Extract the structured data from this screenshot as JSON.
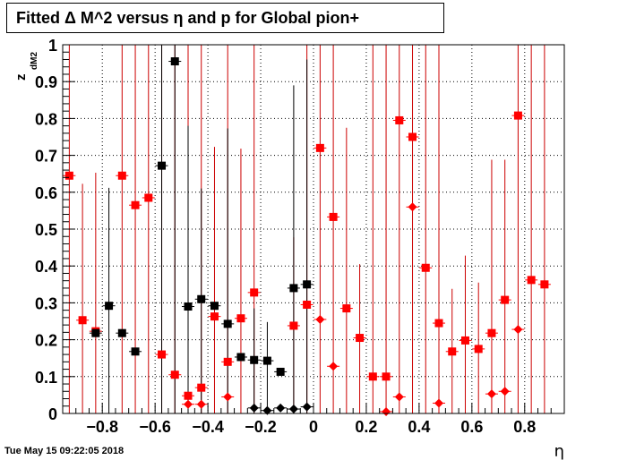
{
  "chart_data": {
    "type": "scatter",
    "title": "Fitted Δ M^2 versus η and p for Global pion+",
    "xlabel": "η",
    "zlabel": "z",
    "zlabel_sub": "dM2",
    "xlim": [
      -0.95,
      0.95
    ],
    "ylim": [
      0,
      1
    ],
    "grid": true,
    "x_ticks": [
      -0.8,
      -0.6,
      -0.4,
      -0.2,
      0,
      0.2,
      0.4,
      0.6,
      0.8
    ],
    "x_tick_labels": [
      "−0.8",
      "−0.6",
      "−0.4",
      "−0.2",
      "0",
      "0.2",
      "0.4",
      "0.6",
      "0.8"
    ],
    "y_ticks": [
      0,
      0.1,
      0.2,
      0.3,
      0.4,
      0.5,
      0.6,
      0.7,
      0.8,
      0.9,
      1
    ],
    "y_tick_labels": [
      "0",
      "0.1",
      "0.2",
      "0.3",
      "0.4",
      "0.5",
      "0.6",
      "0.7",
      "0.8",
      "0.9",
      "1"
    ],
    "colors": {
      "red": "#ff0000",
      "black": "#000000",
      "red_errbar": "#cc0000"
    },
    "series": [
      {
        "color": "red",
        "marker": "square",
        "points": [
          {
            "x": -0.925,
            "y": 0.645,
            "err": 1.0
          },
          {
            "x": -0.875,
            "y": 0.253,
            "err": 0.37
          },
          {
            "x": -0.825,
            "y": 0.223,
            "err": 0.43
          },
          {
            "x": -0.725,
            "y": 0.645,
            "err": 1.0
          },
          {
            "x": -0.675,
            "y": 0.565,
            "err": 1.0
          },
          {
            "x": -0.625,
            "y": 0.585,
            "err": 1.0
          },
          {
            "x": -0.575,
            "y": 0.16,
            "err": 1.0
          },
          {
            "x": -0.525,
            "y": 0.105,
            "err": 1.0
          },
          {
            "x": -0.475,
            "y": 0.048,
            "err": 1.0
          },
          {
            "x": -0.425,
            "y": 0.07,
            "err": 1.0
          },
          {
            "x": -0.375,
            "y": 0.263,
            "err": 0.46
          },
          {
            "x": -0.325,
            "y": 0.14,
            "err": 1.0
          },
          {
            "x": -0.275,
            "y": 0.258,
            "err": 0.46
          },
          {
            "x": -0.225,
            "y": 0.328,
            "err": 1.0
          },
          {
            "x": -0.075,
            "y": 0.238,
            "err": 0.24
          },
          {
            "x": -0.025,
            "y": 0.295,
            "err": 1.0
          },
          {
            "x": 0.025,
            "y": 0.72,
            "err": 1.0
          },
          {
            "x": 0.075,
            "y": 0.533,
            "err": 1.0
          },
          {
            "x": 0.125,
            "y": 0.285,
            "err": 0.49
          },
          {
            "x": 0.175,
            "y": 0.205,
            "err": 0.2
          },
          {
            "x": 0.225,
            "y": 0.1,
            "err": 1.0
          },
          {
            "x": 0.275,
            "y": 0.1,
            "err": 1.0
          },
          {
            "x": 0.325,
            "y": 0.795,
            "err": 1.0
          },
          {
            "x": 0.375,
            "y": 0.75,
            "err": 1.0
          },
          {
            "x": 0.425,
            "y": 0.395,
            "err": 1.0
          },
          {
            "x": 0.475,
            "y": 0.245,
            "err": 1.0
          },
          {
            "x": 0.525,
            "y": 0.168,
            "err": 0.17
          },
          {
            "x": 0.575,
            "y": 0.198,
            "err": 0.23
          },
          {
            "x": 0.625,
            "y": 0.175,
            "err": 0.18
          },
          {
            "x": 0.675,
            "y": 0.218,
            "err": 0.47
          },
          {
            "x": 0.725,
            "y": 0.308,
            "err": 0.38
          },
          {
            "x": 0.775,
            "y": 0.808,
            "err": 1.0
          },
          {
            "x": 0.825,
            "y": 0.362,
            "err": 1.0
          },
          {
            "x": 0.875,
            "y": 0.35,
            "err": 1.0
          }
        ]
      },
      {
        "color": "red",
        "marker": "diamond",
        "points": [
          {
            "x": -0.475,
            "y": 0.025
          },
          {
            "x": -0.425,
            "y": 0.025
          },
          {
            "x": -0.325,
            "y": 0.045
          },
          {
            "x": 0.025,
            "y": 0.255
          },
          {
            "x": 0.075,
            "y": 0.128
          },
          {
            "x": 0.275,
            "y": 0.005
          },
          {
            "x": 0.325,
            "y": 0.045
          },
          {
            "x": 0.375,
            "y": 0.56
          },
          {
            "x": 0.475,
            "y": 0.028
          },
          {
            "x": 0.675,
            "y": 0.053
          },
          {
            "x": 0.725,
            "y": 0.06
          },
          {
            "x": 0.775,
            "y": 0.228
          }
        ]
      },
      {
        "color": "black",
        "marker": "square",
        "points": [
          {
            "x": -0.825,
            "y": 0.218,
            "err": 0.0
          },
          {
            "x": -0.775,
            "y": 0.292,
            "err": 0.32
          },
          {
            "x": -0.725,
            "y": 0.218,
            "err": 0.0
          },
          {
            "x": -0.675,
            "y": 0.168,
            "err": 0.0
          },
          {
            "x": -0.575,
            "y": 0.672,
            "err": 1.0
          },
          {
            "x": -0.525,
            "y": 0.955,
            "err": 1.0
          },
          {
            "x": -0.475,
            "y": 0.29,
            "err": 0.49
          },
          {
            "x": -0.425,
            "y": 0.31,
            "err": 0.3
          },
          {
            "x": -0.375,
            "y": 0.292,
            "err": 0.0
          },
          {
            "x": -0.325,
            "y": 0.243,
            "err": 0.53
          },
          {
            "x": -0.275,
            "y": 0.153,
            "err": 0.0
          },
          {
            "x": -0.225,
            "y": 0.145,
            "err": 0.0
          },
          {
            "x": -0.175,
            "y": 0.143,
            "err": 0.0
          },
          {
            "x": -0.125,
            "y": 0.113,
            "err": 0.0
          },
          {
            "x": -0.075,
            "y": 0.34,
            "err": 0.55
          },
          {
            "x": -0.025,
            "y": 0.35,
            "err": 0.61
          }
        ]
      },
      {
        "color": "black",
        "marker": "diamond",
        "points": [
          {
            "x": -0.225,
            "y": 0.015,
            "err": 0.27
          },
          {
            "x": -0.175,
            "y": 0.008,
            "err": 0.24
          },
          {
            "x": -0.125,
            "y": 0.015,
            "err": 0.0
          },
          {
            "x": -0.075,
            "y": 0.012,
            "err": 0.0
          },
          {
            "x": -0.025,
            "y": 0.018,
            "err": 0.0
          }
        ]
      }
    ]
  },
  "datestamp": "Tue May 15 09:22:05 2018"
}
